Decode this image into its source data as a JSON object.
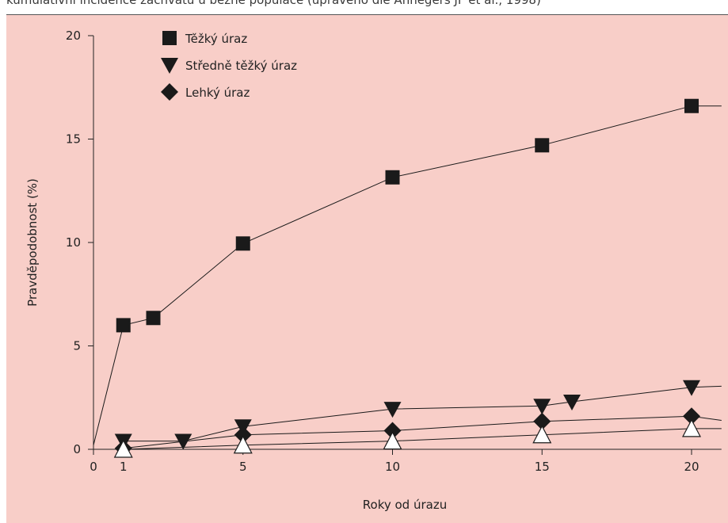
{
  "caption": "kumulativní incidence záchvatů u běžné populace (upraveno dle Annegers JF et al., 1998)",
  "chart_data": {
    "type": "line",
    "xlabel": "Roky od úrazu",
    "ylabel": "Pravděpodobnost (%)",
    "xlim": [
      0,
      21
    ],
    "ylim": [
      0,
      20
    ],
    "x_ticks": [
      0,
      1,
      5,
      10,
      15,
      20
    ],
    "y_ticks": [
      0,
      5,
      10,
      15,
      20
    ],
    "legend_position": "top-left",
    "grid": false,
    "series": [
      {
        "name": "Těžký úraz",
        "marker": "square",
        "color": "#1a1a1a",
        "points": [
          [
            0,
            0.2
          ],
          [
            1,
            6.0
          ],
          [
            2,
            6.35
          ],
          [
            5,
            9.95
          ],
          [
            10,
            13.15
          ],
          [
            15,
            14.7
          ],
          [
            20,
            16.6
          ],
          [
            21,
            16.6
          ]
        ]
      },
      {
        "name": "Středně těžký úraz",
        "marker": "triangle-down",
        "color": "#1a1a1a",
        "points": [
          [
            1,
            0.4
          ],
          [
            3,
            0.4
          ],
          [
            5,
            1.1
          ],
          [
            10,
            1.95
          ],
          [
            15,
            2.1
          ],
          [
            16,
            2.3
          ],
          [
            20,
            3.0
          ],
          [
            21,
            3.05
          ]
        ]
      },
      {
        "name": "Lehký úraz",
        "marker": "diamond",
        "color": "#1a1a1a",
        "points": [
          [
            1,
            0.05
          ],
          [
            5,
            0.7
          ],
          [
            10,
            0.9
          ],
          [
            15,
            1.35
          ],
          [
            20,
            1.6
          ],
          [
            21,
            1.4
          ]
        ]
      },
      {
        "name": "",
        "marker": "triangle-up-open",
        "color": "#1a1a1a",
        "points": [
          [
            1,
            0.0
          ],
          [
            5,
            0.2
          ],
          [
            10,
            0.4
          ],
          [
            15,
            0.7
          ],
          [
            20,
            1.0
          ],
          [
            21,
            1.0
          ]
        ]
      }
    ]
  }
}
